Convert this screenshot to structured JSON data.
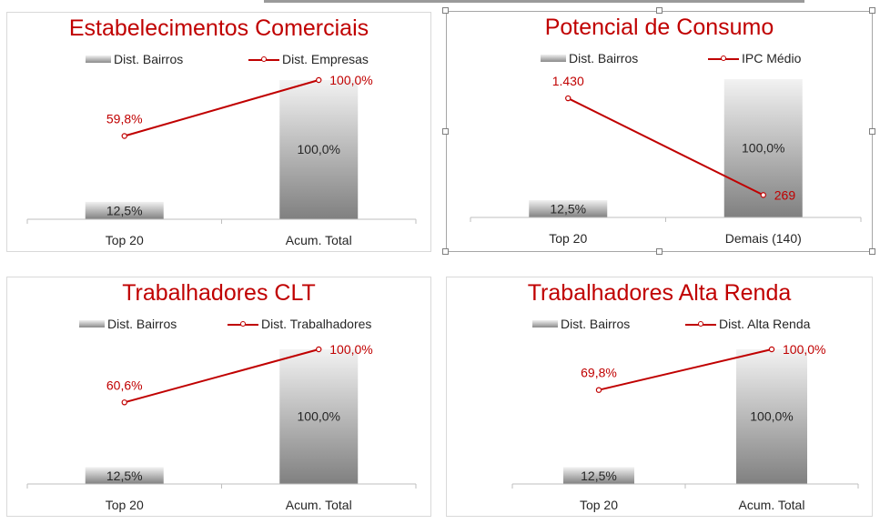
{
  "colors": {
    "accent": "#c00000",
    "axis": "#bfbfbf",
    "bar_light": "#f2f2f2",
    "bar_dark": "#808080"
  },
  "charts": [
    {
      "title": "Estabelecimentos Comerciais",
      "legend_bar": "Dist. Bairros",
      "legend_line": "Dist. Empresas",
      "categories": [
        "Top 20",
        "Acum. Total"
      ],
      "bar_labels": [
        "12,5%",
        "100,0%"
      ],
      "line_labels": [
        "59,8%",
        "100,0%"
      ]
    },
    {
      "title": "Potencial de Consumo",
      "legend_bar": "Dist. Bairros",
      "legend_line": "IPC Médio",
      "categories": [
        "Top 20",
        "Demais (140)"
      ],
      "bar_labels": [
        "12,5%",
        "100,0%"
      ],
      "line_labels": [
        "1.430",
        "269"
      ]
    },
    {
      "title": "Trabalhadores CLT",
      "legend_bar": "Dist. Bairros",
      "legend_line": "Dist. Trabalhadores",
      "categories": [
        "Top 20",
        "Acum. Total"
      ],
      "bar_labels": [
        "12,5%",
        "100,0%"
      ],
      "line_labels": [
        "60,6%",
        "100,0%"
      ]
    },
    {
      "title": "Trabalhadores Alta Renda",
      "legend_bar": "Dist. Bairros",
      "legend_line": "Dist. Alta Renda",
      "categories": [
        "Top 20",
        "Acum. Total"
      ],
      "bar_labels": [
        "12,5%",
        "100,0%"
      ],
      "line_labels": [
        "69,8%",
        "100,0%"
      ]
    }
  ],
  "chart_data": [
    {
      "type": "bar",
      "title": "Estabelecimentos Comerciais",
      "categories": [
        "Top 20",
        "Acum. Total"
      ],
      "series": [
        {
          "name": "Dist. Bairros",
          "type": "bar",
          "values": [
            12.5,
            100.0
          ]
        },
        {
          "name": "Dist. Empresas",
          "type": "line",
          "values": [
            59.8,
            100.0
          ]
        }
      ],
      "ylim": [
        0,
        100
      ],
      "legend": "top",
      "grid": false
    },
    {
      "type": "bar",
      "title": "Potencial de Consumo",
      "categories": [
        "Top 20",
        "Demais (140)"
      ],
      "series": [
        {
          "name": "Dist. Bairros",
          "type": "bar",
          "values": [
            12.5,
            100.0
          ]
        },
        {
          "name": "IPC Médio",
          "type": "line",
          "values": [
            1430,
            269
          ]
        }
      ],
      "legend": "top",
      "grid": false
    },
    {
      "type": "bar",
      "title": "Trabalhadores CLT",
      "categories": [
        "Top 20",
        "Acum. Total"
      ],
      "series": [
        {
          "name": "Dist. Bairros",
          "type": "bar",
          "values": [
            12.5,
            100.0
          ]
        },
        {
          "name": "Dist. Trabalhadores",
          "type": "line",
          "values": [
            60.6,
            100.0
          ]
        }
      ],
      "ylim": [
        0,
        100
      ],
      "legend": "top",
      "grid": false
    },
    {
      "type": "bar",
      "title": "Trabalhadores Alta Renda",
      "categories": [
        "Top 20",
        "Acum. Total"
      ],
      "series": [
        {
          "name": "Dist. Bairros",
          "type": "bar",
          "values": [
            12.5,
            100.0
          ]
        },
        {
          "name": "Dist. Alta Renda",
          "type": "line",
          "values": [
            69.8,
            100.0
          ]
        }
      ],
      "ylim": [
        0,
        100
      ],
      "legend": "top",
      "grid": false
    }
  ]
}
